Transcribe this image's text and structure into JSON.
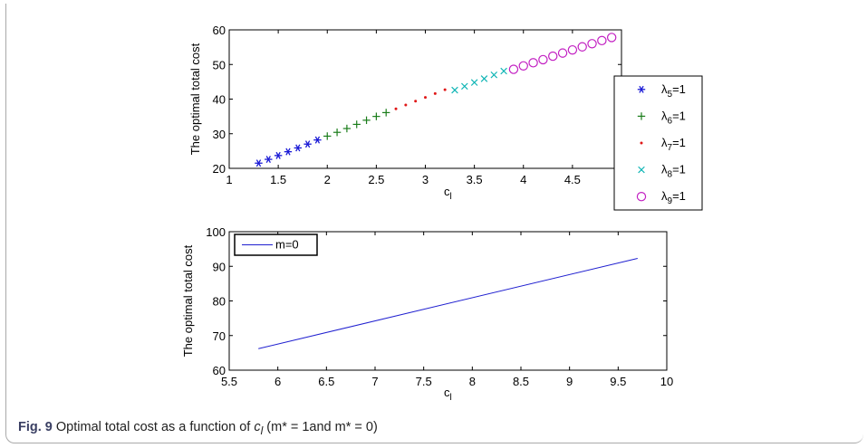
{
  "chart_data": [
    {
      "type": "scatter",
      "xlabel": "c_l",
      "ylabel": "The optimal total cost",
      "xlim": [
        1,
        5
      ],
      "ylim": [
        20,
        60
      ],
      "xticks": [
        "1",
        "1.5",
        "2",
        "2.5",
        "3",
        "3.5",
        "4",
        "4.5"
      ],
      "yticks": [
        "20",
        "30",
        "40",
        "50",
        "60"
      ],
      "legend_placement": "right",
      "series": [
        {
          "name": "λ5=1",
          "sub": "5",
          "marker": "asterisk",
          "color": "#1a1ad6",
          "x": [
            1.3,
            1.4,
            1.5,
            1.6,
            1.7,
            1.8,
            1.9
          ],
          "y": [
            21.5,
            22.6,
            23.7,
            24.8,
            25.9,
            27.0,
            28.2
          ]
        },
        {
          "name": "λ6=1",
          "sub": "6",
          "marker": "plus",
          "color": "#1b7d1b",
          "x": [
            2.0,
            2.1,
            2.2,
            2.3,
            2.4,
            2.5,
            2.6
          ],
          "y": [
            29.3,
            30.4,
            31.5,
            32.7,
            33.9,
            35.0,
            36.1
          ]
        },
        {
          "name": "λ7=1",
          "sub": "7",
          "marker": "dot",
          "color": "#e01818",
          "x": [
            2.7,
            2.8,
            2.9,
            3.0,
            3.1,
            3.2
          ],
          "y": [
            37.2,
            38.3,
            39.4,
            40.5,
            41.6,
            42.7
          ]
        },
        {
          "name": "λ8=1",
          "sub": "8",
          "marker": "x",
          "color": "#10b5b5",
          "x": [
            3.3,
            3.4,
            3.5,
            3.6,
            3.7,
            3.8
          ],
          "y": [
            42.6,
            43.7,
            44.8,
            45.9,
            47.0,
            48.1
          ]
        },
        {
          "name": "λ9=1",
          "sub": "9",
          "marker": "circle",
          "color": "#c21fc2",
          "x": [
            3.9,
            4.0,
            4.1,
            4.2,
            4.3,
            4.4,
            4.5,
            4.6,
            4.7,
            4.8,
            4.9
          ],
          "y": [
            48.6,
            49.6,
            50.5,
            51.4,
            52.4,
            53.3,
            54.2,
            55.1,
            56.0,
            56.9,
            57.8
          ]
        }
      ]
    },
    {
      "type": "line",
      "xlabel": "c_l",
      "ylabel": "The optimal total cost",
      "xlim": [
        5.5,
        10
      ],
      "ylim": [
        60,
        100
      ],
      "xticks": [
        "5.5",
        "6",
        "6.5",
        "7",
        "7.5",
        "8",
        "8.5",
        "9",
        "9.5",
        "10"
      ],
      "yticks": [
        "60",
        "70",
        "80",
        "90",
        "100"
      ],
      "legend_placement": "top-left",
      "series": [
        {
          "name": "m=0",
          "color": "#2020d0",
          "x": [
            5.8,
            9.7
          ],
          "y": [
            66.2,
            92.3
          ]
        }
      ]
    }
  ],
  "caption": {
    "label": "Fig. 9",
    "text_before": "Optimal total cost as a function of ",
    "var": "c",
    "var_sub": "l",
    "text_mid": " (m* = 1and m* = 0)"
  }
}
